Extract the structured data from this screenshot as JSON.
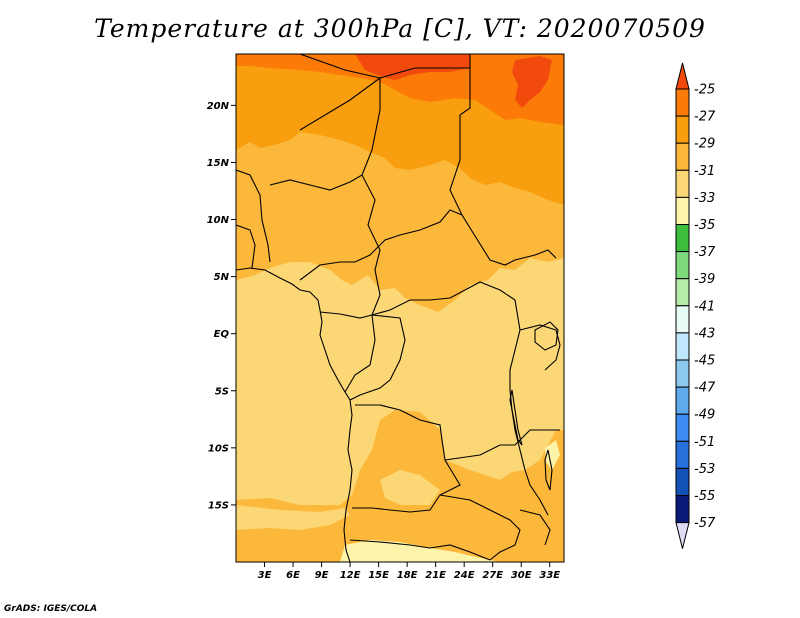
{
  "title": "Temperature at 300hPa [C], VT: 2020070509",
  "credit": "GrADS: IGES/COLA",
  "map": {
    "lon_range": [
      0,
      34.5
    ],
    "lat_range": [
      -20,
      24.5
    ],
    "lat_ticks": [
      {
        "value": 20,
        "label": "20N"
      },
      {
        "value": 15,
        "label": "15N"
      },
      {
        "value": 10,
        "label": "10N"
      },
      {
        "value": 5,
        "label": "5N"
      },
      {
        "value": 0,
        "label": "EQ"
      },
      {
        "value": -5,
        "label": "5S"
      },
      {
        "value": -10,
        "label": "10S"
      },
      {
        "value": -15,
        "label": "15S"
      }
    ],
    "lon_ticks": [
      {
        "value": 3,
        "label": "3E"
      },
      {
        "value": 6,
        "label": "6E"
      },
      {
        "value": 9,
        "label": "9E"
      },
      {
        "value": 12,
        "label": "12E"
      },
      {
        "value": 15,
        "label": "15E"
      },
      {
        "value": 18,
        "label": "18E"
      },
      {
        "value": 21,
        "label": "21E"
      },
      {
        "value": 24,
        "label": "24E"
      },
      {
        "value": 27,
        "label": "27E"
      },
      {
        "value": 30,
        "label": "30E"
      },
      {
        "value": 33,
        "label": "33E"
      }
    ]
  },
  "colorbar": {
    "labels": [
      "-25",
      "-27",
      "-29",
      "-31",
      "-33",
      "-35",
      "-37",
      "-39",
      "-41",
      "-43",
      "-45",
      "-47",
      "-49",
      "-51",
      "-53",
      "-55",
      "-57"
    ],
    "colors": [
      "#f24a0c",
      "#fb7a08",
      "#f99f0f",
      "#fbb83a",
      "#fcd775",
      "#fdf3a9",
      "#3cbe3c",
      "#7ed97a",
      "#b5ecaa",
      "#e6faf6",
      "#bfe6fa",
      "#8dc8ef",
      "#5fa9ec",
      "#3d8df2",
      "#2671dc",
      "#1251b5",
      "#0a1a78",
      "#2b1480"
    ],
    "top_color": "#f24a0c",
    "bottom_color": "#e0dcf5"
  }
}
